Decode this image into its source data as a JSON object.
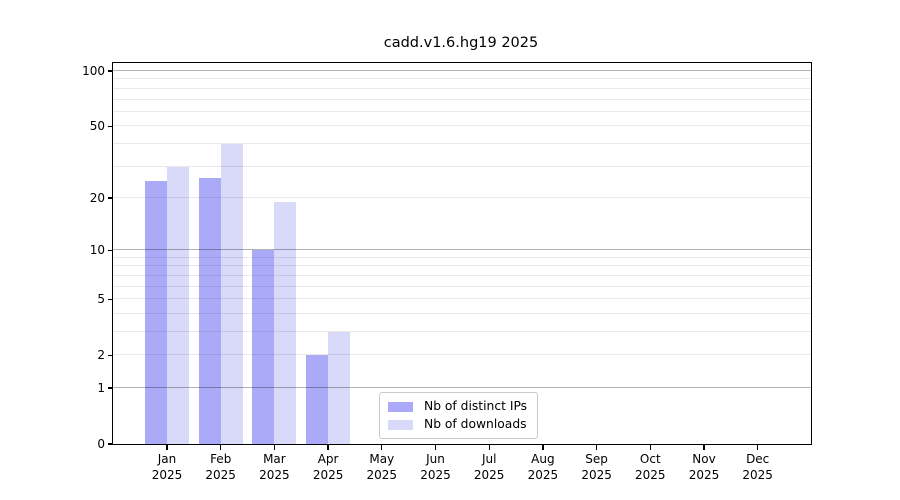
{
  "title": "cadd.v1.6.hg19 2025",
  "colors": {
    "bar_distinct_ips": "#aaaaf8",
    "bar_downloads": "#d9d9fa",
    "grid_major": "rgba(0,0,0,0.30)",
    "grid_minor": "rgba(0,0,0,0.085)",
    "spine": "#000000",
    "background": "#ffffff"
  },
  "chart_data": {
    "type": "bar",
    "title": "cadd.v1.6.hg19 2025",
    "categories": [
      "Jan",
      "Feb",
      "Mar",
      "Apr",
      "May",
      "Jun",
      "Jul",
      "Aug",
      "Sep",
      "Oct",
      "Nov",
      "Dec"
    ],
    "x_tick_year": "2025",
    "series": [
      {
        "name": "Nb of distinct IPs",
        "color": "#aaaaf8",
        "values": [
          25,
          26,
          10,
          2,
          0,
          0,
          0,
          0,
          0,
          0,
          0,
          0
        ]
      },
      {
        "name": "Nb of downloads",
        "color": "#d9d9fa",
        "values": [
          30,
          40,
          19,
          3,
          0,
          0,
          0,
          0,
          0,
          0,
          0,
          0
        ]
      }
    ],
    "xlabel": "",
    "ylabel": "",
    "yscale": "symlog-like (log1p)",
    "yticks": [
      0,
      1,
      2,
      5,
      10,
      20,
      50,
      100
    ],
    "ylim": [
      0,
      110
    ],
    "grid": {
      "orientation": "horizontal",
      "major_at": [
        1,
        10,
        100
      ],
      "minor_at": [
        2,
        3,
        4,
        5,
        6,
        7,
        8,
        9,
        20,
        30,
        40,
        50,
        60,
        70,
        80,
        90
      ]
    },
    "legend": {
      "position": "lower center",
      "items": [
        "Nb of distinct IPs",
        "Nb of downloads"
      ]
    }
  }
}
